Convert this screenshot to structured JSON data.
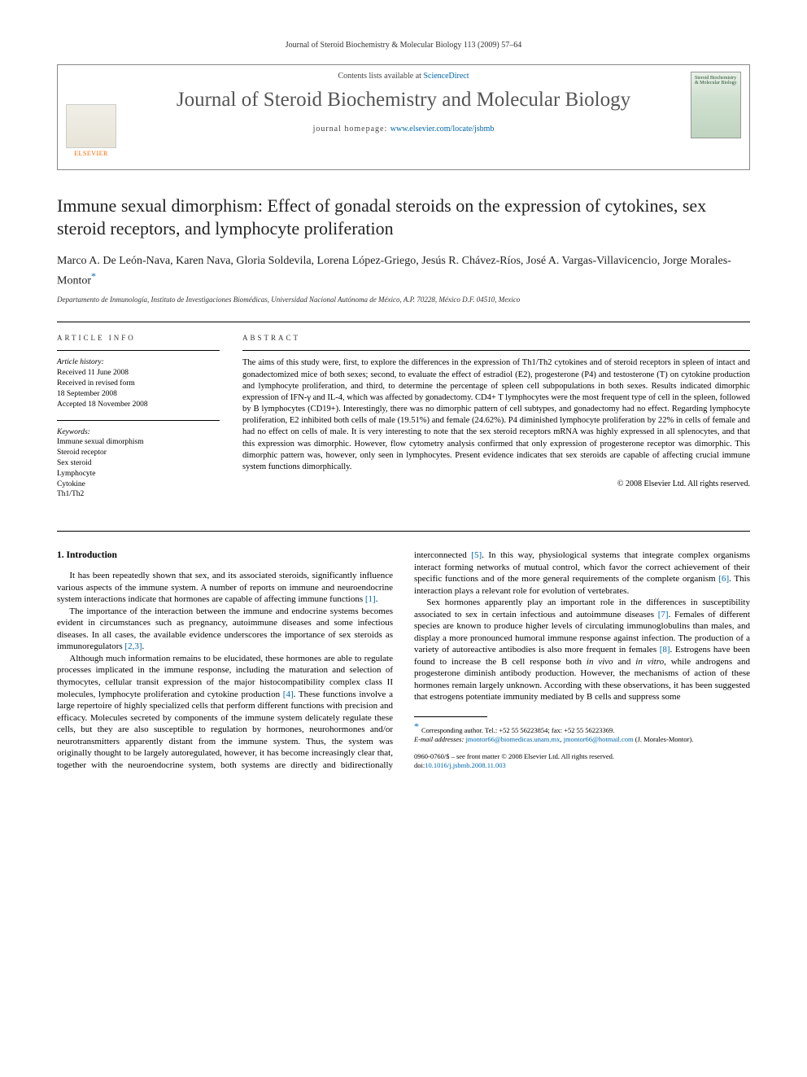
{
  "running_head": "Journal of Steroid Biochemistry & Molecular Biology 113 (2009) 57–64",
  "header": {
    "contents_prefix": "Contents lists available at ",
    "contents_link": "ScienceDirect",
    "journal_name": "Journal of Steroid Biochemistry and Molecular Biology",
    "homepage_prefix": "journal homepage: ",
    "homepage_url": "www.elsevier.com/locate/jsbmb",
    "elsevier_label": "ELSEVIER",
    "cover_text": "Steroid Biochemistry & Molecular Biology"
  },
  "title": "Immune sexual dimorphism: Effect of gonadal steroids on the expression of cytokines, sex steroid receptors, and lymphocyte proliferation",
  "authors": "Marco A. De León-Nava, Karen Nava, Gloria Soldevila, Lorena López-Griego, Jesús R. Chávez-Ríos, José A. Vargas-Villavicencio, Jorge Morales-Montor",
  "affiliation": "Departamento de Inmunología, Instituto de Investigaciones Biomédicas, Universidad Nacional Autónoma de México, A.P. 70228, México D.F. 04510, Mexico",
  "article_info": {
    "heading": "article info",
    "history_label": "Article history:",
    "received": "Received 11 June 2008",
    "revised1": "Received in revised form",
    "revised2": "18 September 2008",
    "accepted": "Accepted 18 November 2008",
    "keywords_label": "Keywords:",
    "keywords": [
      "Immune sexual dimorphism",
      "Steroid receptor",
      "Sex steroid",
      "Lymphocyte",
      "Cytokine",
      "Th1/Th2"
    ]
  },
  "abstract": {
    "heading": "abstract",
    "text": "The aims of this study were, first, to explore the differences in the expression of Th1/Th2 cytokines and of steroid receptors in spleen of intact and gonadectomized mice of both sexes; second, to evaluate the effect of estradiol (E2), progesterone (P4) and testosterone (T) on cytokine production and lymphocyte proliferation, and third, to determine the percentage of spleen cell subpopulations in both sexes. Results indicated dimorphic expression of IFN-γ and IL-4, which was affected by gonadectomy. CD4+ T lymphocytes were the most frequent type of cell in the spleen, followed by B lymphocytes (CD19+). Interestingly, there was no dimorphic pattern of cell subtypes, and gonadectomy had no effect. Regarding lymphocyte proliferation, E2 inhibited both cells of male (19.51%) and female (24.62%). P4 diminished lymphocyte proliferation by 22% in cells of female and had no effect on cells of male. It is very interesting to note that the sex steroid receptors mRNA was highly expressed in all splenocytes, and that this expression was dimorphic. However, flow cytometry analysis confirmed that only expression of progesterone receptor was dimorphic. This dimorphic pattern was, however, only seen in lymphocytes. Present evidence indicates that sex steroids are capable of affecting crucial immune system functions dimorphically.",
    "copyright": "© 2008 Elsevier Ltd. All rights reserved."
  },
  "body": {
    "section_heading": "1. Introduction",
    "p1": "It has been repeatedly shown that sex, and its associated steroids, significantly influence various aspects of the immune system. A number of reports on immune and neuroendocrine system interactions indicate that hormones are capable of affecting immune functions ",
    "p1_ref": "[1]",
    "p1_end": ".",
    "p2": "The importance of the interaction between the immune and endocrine systems becomes evident in circumstances such as pregnancy, autoimmune diseases and some infectious diseases. In all cases, the available evidence underscores the importance of sex steroids as immunoregulators ",
    "p2_ref": "[2,3]",
    "p2_end": ".",
    "p3a": "Although much information remains to be elucidated, these hormones are able to regulate processes implicated in the immune response, including the maturation and selection of thymocytes, cellular transit expression of the major histocompatibility complex class II molecules, lymphocyte proliferation and cytokine production ",
    "p3_ref": "[4]",
    "p3b": ". These functions involve a large repertoire of highly specialized cells that perform different functions with precision ",
    "p4a": "and efficacy. Molecules secreted by components of the immune system delicately regulate these cells, but they are also susceptible to regulation by hormones, neurohormones and/or neurotransmitters apparently distant from the immune system. Thus, the system was originally thought to be largely autoregulated, however, it has become increasingly clear that, together with the neuroendocrine system, both systems are directly and bidirectionally interconnected ",
    "p4_ref5": "[5]",
    "p4b": ". In this way, physiological systems that integrate complex organisms interact forming networks of mutual control, which favor the correct achievement of their specific functions and of the more general requirements of the complete organism ",
    "p4_ref6": "[6]",
    "p4c": ". This interaction plays a relevant role for evolution of vertebrates.",
    "p5a": "Sex hormones apparently play an important role in the differences in susceptibility associated to sex in certain infectious and autoimmune diseases ",
    "p5_ref7": "[7]",
    "p5b": ". Females of different species are known to produce higher levels of circulating immunoglobulins than males, and display a more pronounced humoral immune response against infection. The production of a variety of autoreactive antibodies is also more frequent in females ",
    "p5_ref8": "[8]",
    "p5c": ". Estrogens have been found to increase the B cell response both ",
    "p5_invivo": "in vivo",
    "p5_and": " and ",
    "p5_invitro": "in vitro",
    "p5d": ", while androgens and progesterone diminish antibody production. However, the mechanisms of action of these hormones remain largely unknown. According with these observations, it has been suggested that estrogens potentiate immunity mediated by B cells and suppress some"
  },
  "footnote": {
    "corr_label": "Corresponding author. Tel.: +52 55 56223854; fax: +52 55 56223369.",
    "email_label": "E-mail addresses:",
    "email1": "jmontor66@biomedicas.unam.mx",
    "email_sep": ", ",
    "email2": "jmontor66@hotmail.com",
    "email_who": "(J. Morales-Montor)."
  },
  "footer": {
    "line1": "0960-0760/$ – see front matter © 2008 Elsevier Ltd. All rights reserved.",
    "doi_label": "doi:",
    "doi": "10.1016/j.jsbmb.2008.11.003"
  }
}
